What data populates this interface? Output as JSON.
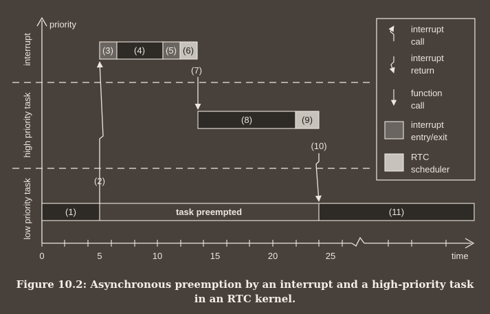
{
  "axes": {
    "y_label": "priority",
    "x_label": "time",
    "x_ticks": [
      "0",
      "5",
      "10",
      "15",
      "20",
      "25"
    ]
  },
  "levels": {
    "interrupt": "interrupt",
    "high": "high priority task",
    "low": "low priority task"
  },
  "segments": {
    "s1": "(1)",
    "s3": "(3)",
    "s4": "(4)",
    "s5": "(5)",
    "s6": "(6)",
    "s8": "(8)",
    "s9": "(9)",
    "s11": "(11)",
    "preempted": "task preempted"
  },
  "events": {
    "e2": "(2)",
    "e7": "(7)",
    "e10": "(10)"
  },
  "legend": {
    "interrupt_call": [
      "interrupt",
      "call"
    ],
    "interrupt_return": [
      "interrupt",
      "return"
    ],
    "function_call": [
      "function",
      "call"
    ],
    "entry_exit": [
      "interrupt",
      "entry/exit"
    ],
    "scheduler": [
      "RTC",
      "scheduler"
    ]
  },
  "caption": {
    "line1": "Figure 10.2: Asynchronous preemption by an interrupt and a high-priority task",
    "line2": "in an RTC kernel."
  },
  "colors": {
    "background": "#48403a",
    "task_fill": "#2e2a26",
    "entry_exit_fill": "#6a6560",
    "scheduler_fill": "#c7c3bc",
    "line": "#ece8e0"
  }
}
